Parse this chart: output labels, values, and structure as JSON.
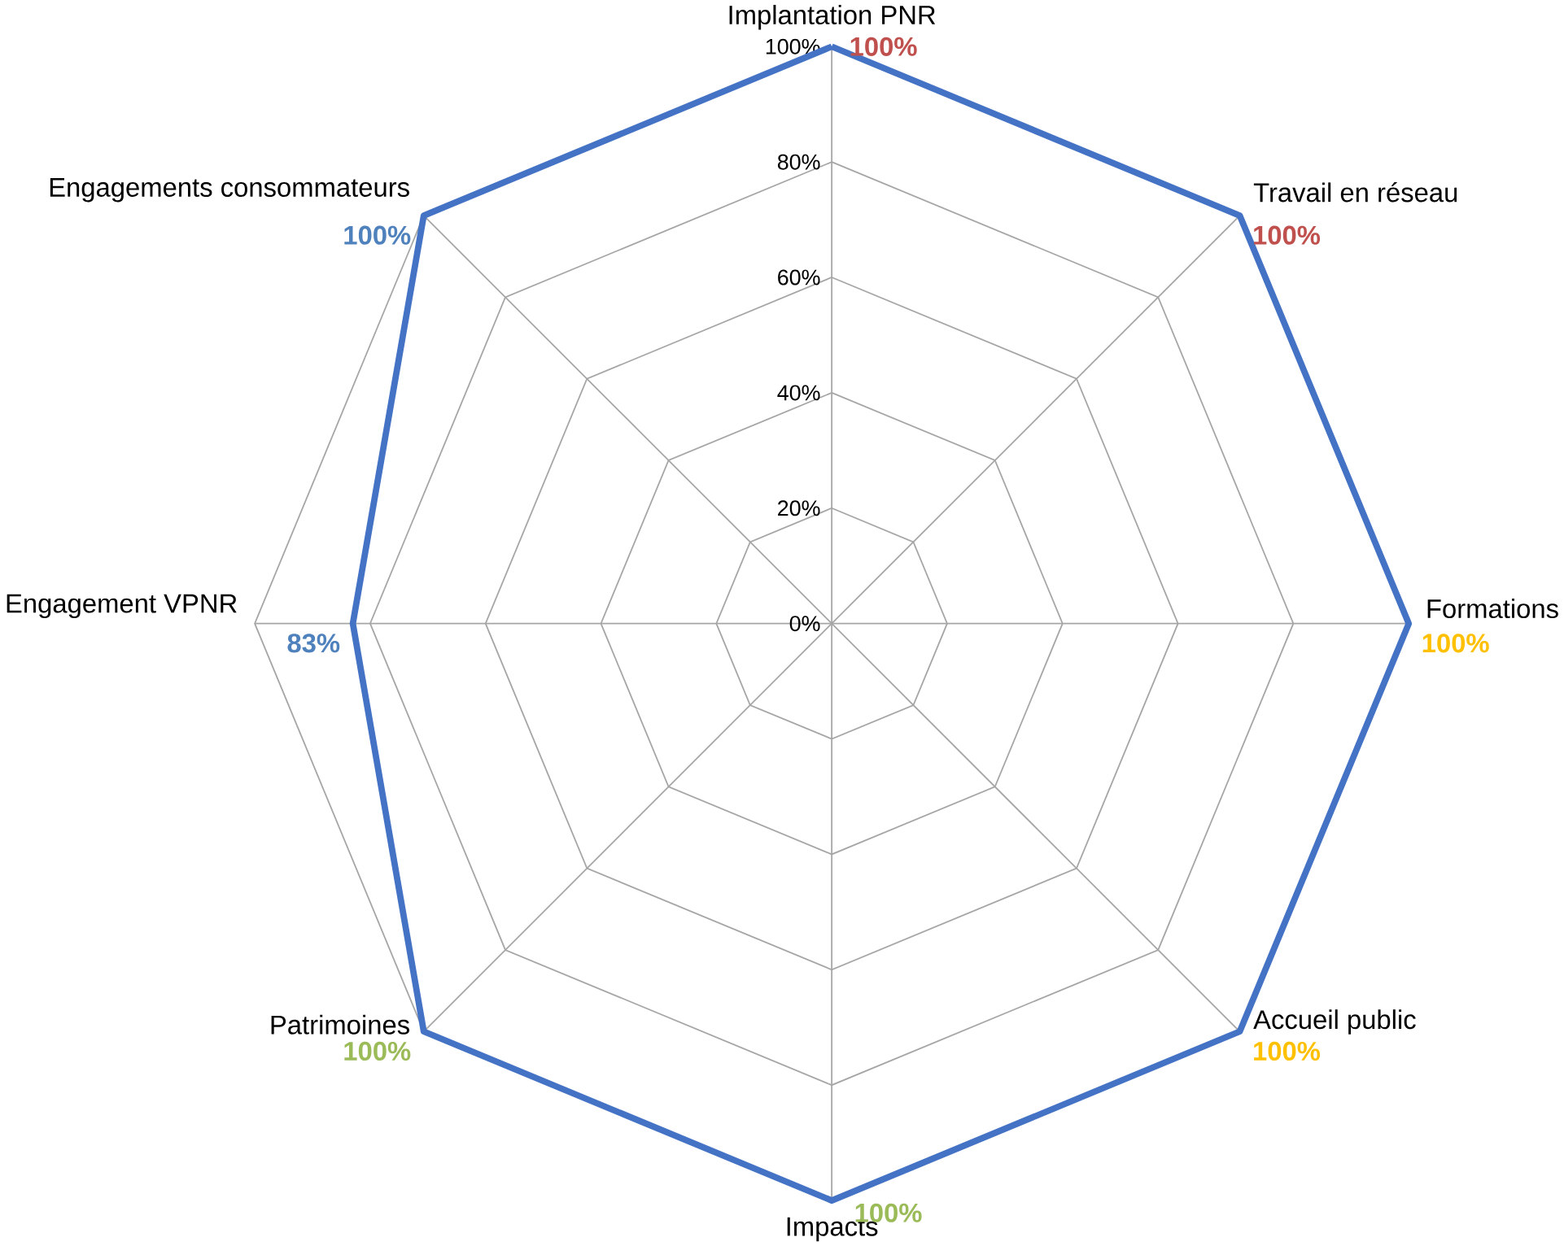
{
  "chart_data": {
    "type": "radar",
    "categories": [
      "Implantation PNR",
      "Travail en réseau",
      "Formations",
      "Accueil public",
      "Impacts",
      "Patrimoines",
      "Engagement VPNR",
      "Engagements consommateurs"
    ],
    "series": [
      {
        "color": "#4472c4",
        "values": [
          100,
          100,
          100,
          100,
          100,
          100,
          83,
          100
        ],
        "value_labels": [
          "100%",
          "100%",
          "100%",
          "100%",
          "100%",
          "100%",
          "83%",
          "100%"
        ],
        "colors": [
          "#c0504d",
          "#c0504d",
          "#ffc000",
          "#ffc000",
          "#9bbb59",
          "#9bbb59",
          "#4f81bd",
          "#4f81bd"
        ]
      }
    ],
    "ylim": [
      0,
      100
    ],
    "yticks": [
      {
        "value": 0,
        "label": "0%"
      },
      {
        "value": 20,
        "label": "20%"
      },
      {
        "value": 40,
        "label": "40%"
      },
      {
        "value": 60,
        "label": "60%"
      },
      {
        "value": 80,
        "label": "80%"
      },
      {
        "value": 100,
        "label": "100%"
      }
    ],
    "grid": true
  }
}
